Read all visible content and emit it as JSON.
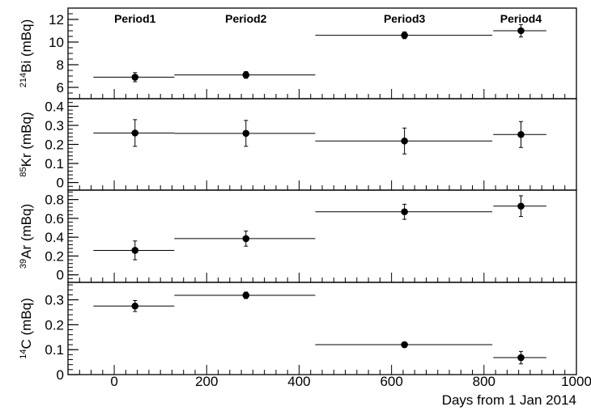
{
  "chart_data": {
    "type": "scatter",
    "x_axis": {
      "label": "Days from 1 Jan 2014",
      "xlim": [
        -100,
        1000
      ],
      "ticks": [
        0,
        200,
        400,
        600,
        800,
        1000
      ],
      "tick_labels": [
        "0",
        "200",
        "400",
        "600",
        "800",
        "1000"
      ]
    },
    "period_labels": [
      {
        "text": "Period1",
        "x": 45
      },
      {
        "text": "Period2",
        "x": 285
      },
      {
        "text": "Period3",
        "x": 628
      },
      {
        "text": "Period4",
        "x": 880
      }
    ],
    "panels": [
      {
        "id": "bi214",
        "ylabel_sup": "214",
        "ylabel_main": "Bi (mBq)",
        "ylim": [
          5.0,
          13.0
        ],
        "yticks": [
          6,
          8,
          10,
          12
        ],
        "ytick_labels": [
          "6",
          "8",
          "10",
          "12"
        ],
        "minor_step": 0.5,
        "points": [
          {
            "x": 45,
            "xerr_low": 90,
            "xerr_high": 85,
            "y": 6.9,
            "yerr": 0.4
          },
          {
            "x": 285,
            "xerr_low": 155,
            "xerr_high": 150,
            "y": 7.1,
            "yerr": 0.3
          },
          {
            "x": 628,
            "xerr_low": 193,
            "xerr_high": 190,
            "y": 10.6,
            "yerr": 0.3
          },
          {
            "x": 880,
            "xerr_low": 60,
            "xerr_high": 55,
            "y": 11.0,
            "yerr": 0.55
          }
        ]
      },
      {
        "id": "kr85",
        "ylabel_sup": "85",
        "ylabel_main": "Kr (mBq)",
        "ylim": [
          -0.04,
          0.44
        ],
        "yticks": [
          0,
          0.1,
          0.2,
          0.3,
          0.4
        ],
        "ytick_labels": [
          "0",
          "0.1",
          "0.2",
          "0.3",
          "0.4"
        ],
        "minor_step": 0.02,
        "points": [
          {
            "x": 45,
            "xerr_low": 90,
            "xerr_high": 85,
            "y": 0.26,
            "yerr": 0.07
          },
          {
            "x": 285,
            "xerr_low": 155,
            "xerr_high": 150,
            "y": 0.258,
            "yerr": 0.068
          },
          {
            "x": 628,
            "xerr_low": 193,
            "xerr_high": 190,
            "y": 0.218,
            "yerr": 0.068
          },
          {
            "x": 880,
            "xerr_low": 60,
            "xerr_high": 55,
            "y": 0.252,
            "yerr": 0.068
          }
        ]
      },
      {
        "id": "ar39",
        "ylabel_sup": "39",
        "ylabel_main": "Ar (mBq)",
        "ylim": [
          -0.08,
          0.9
        ],
        "yticks": [
          0,
          0.2,
          0.4,
          0.6,
          0.8
        ],
        "ytick_labels": [
          "0",
          "0.2",
          "0.4",
          "0.6",
          "0.8"
        ],
        "minor_step": 0.04,
        "points": [
          {
            "x": 45,
            "xerr_low": 90,
            "xerr_high": 85,
            "y": 0.26,
            "yerr": 0.1
          },
          {
            "x": 285,
            "xerr_low": 155,
            "xerr_high": 150,
            "y": 0.385,
            "yerr": 0.08
          },
          {
            "x": 628,
            "xerr_low": 193,
            "xerr_high": 190,
            "y": 0.67,
            "yerr": 0.08
          },
          {
            "x": 880,
            "xerr_low": 60,
            "xerr_high": 55,
            "y": 0.73,
            "yerr": 0.11
          }
        ]
      },
      {
        "id": "c14",
        "ylabel_sup": "14",
        "ylabel_main": "C (mBq)",
        "ylim": [
          0,
          0.37
        ],
        "yticks": [
          0,
          0.1,
          0.2,
          0.3
        ],
        "ytick_labels": [
          "0",
          "0.1",
          "0.2",
          "0.3"
        ],
        "minor_step": 0.02,
        "points": [
          {
            "x": 45,
            "xerr_low": 90,
            "xerr_high": 85,
            "y": 0.275,
            "yerr": 0.022
          },
          {
            "x": 285,
            "xerr_low": 155,
            "xerr_high": 150,
            "y": 0.318,
            "yerr": 0.013
          },
          {
            "x": 628,
            "xerr_low": 193,
            "xerr_high": 190,
            "y": 0.12,
            "yerr": 0.01
          },
          {
            "x": 880,
            "xerr_low": 60,
            "xerr_high": 55,
            "y": 0.068,
            "yerr": 0.025
          }
        ]
      }
    ]
  }
}
